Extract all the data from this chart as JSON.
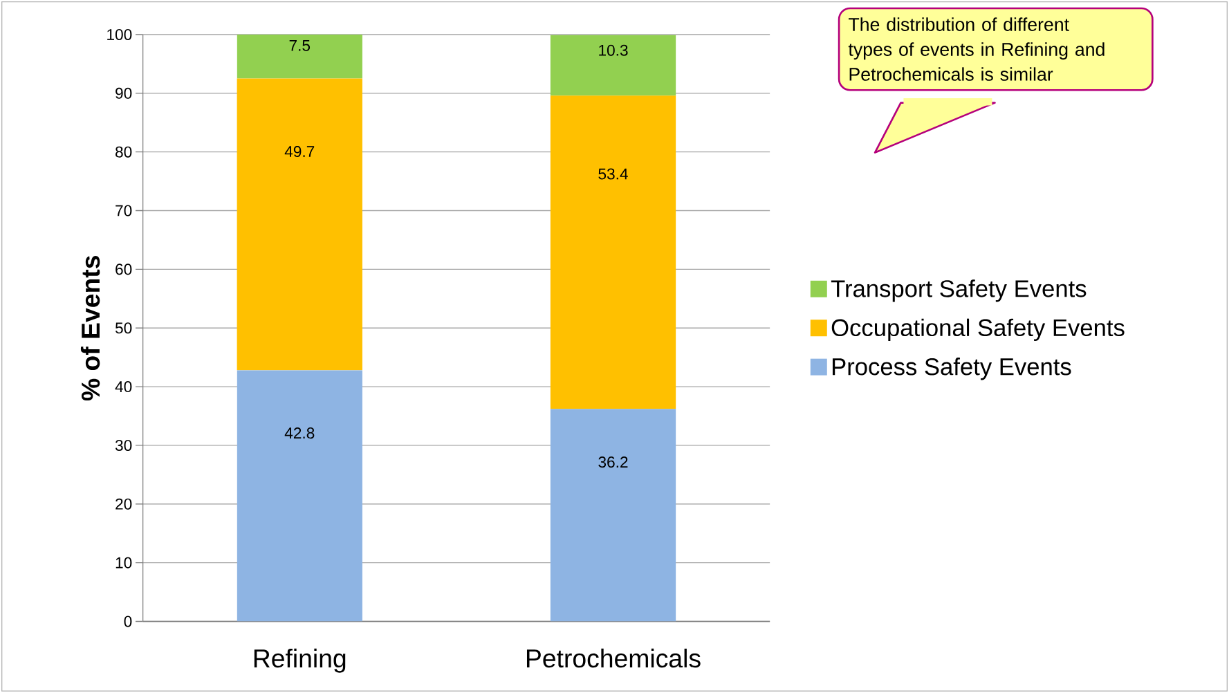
{
  "chart_data": {
    "type": "bar",
    "stacked": true,
    "ylabel": "% of Events",
    "categories": [
      "Refining",
      "Petrochemicals"
    ],
    "series": [
      {
        "name": "Process Safety Events",
        "color": "#8eb4e3",
        "values": [
          42.8,
          36.2
        ]
      },
      {
        "name": "Occupational Safety Events",
        "color": "#ffc000",
        "values": [
          49.7,
          53.4
        ]
      },
      {
        "name": "Transport Safety Events",
        "color": "#92d050",
        "values": [
          7.5,
          10.3
        ]
      }
    ],
    "ylim": [
      0,
      100
    ],
    "yticks": [
      0,
      10,
      20,
      30,
      40,
      50,
      60,
      70,
      80,
      90,
      100
    ],
    "grid": "y",
    "legend": "right",
    "data_labels": true,
    "annotations": [
      "The distribution of different types of events in Refining and Petrochemicals is similar"
    ]
  }
}
